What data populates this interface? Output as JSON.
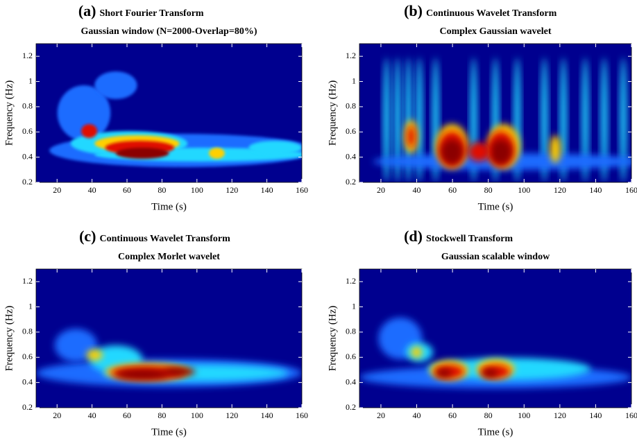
{
  "chart_data": [
    {
      "type": "heatmap",
      "panel": "(a)",
      "title": "Short Fourier Transform",
      "subtitle": "Gaussian window (N=2000-Overlap=80%)",
      "xlabel": "Time (s)",
      "ylabel": "Frequency (Hz)",
      "xlim": [
        8,
        160
      ],
      "ylim": [
        0.2,
        1.3
      ],
      "xticks": [
        20,
        40,
        60,
        80,
        100,
        120,
        140,
        160
      ],
      "yticks": [
        0.2,
        0.4,
        0.6,
        0.8,
        1,
        1.2
      ]
    },
    {
      "type": "heatmap",
      "panel": "(b)",
      "title": "Continuous Wavelet Transform",
      "subtitle": "Complex Gaussian wavelet",
      "xlabel": "Time (s)",
      "ylabel": "Frequency (Hz)",
      "xlim": [
        8,
        160
      ],
      "ylim": [
        0.2,
        1.3
      ],
      "xticks": [
        20,
        40,
        60,
        80,
        100,
        120,
        140,
        160
      ],
      "yticks": [
        0.2,
        0.4,
        0.6,
        0.8,
        1,
        1.2
      ]
    },
    {
      "type": "heatmap",
      "panel": "(c)",
      "title": "Continuous Wavelet Transform",
      "subtitle": "Complex Morlet wavelet",
      "xlabel": "Time (s)",
      "ylabel": "Frequency (Hz)",
      "xlim": [
        8,
        160
      ],
      "ylim": [
        0.2,
        1.3
      ],
      "xticks": [
        20,
        40,
        60,
        80,
        100,
        120,
        140,
        160
      ],
      "yticks": [
        0.2,
        0.4,
        0.6,
        0.8,
        1,
        1.2
      ]
    },
    {
      "type": "heatmap",
      "panel": "(d)",
      "title": "Stockwell Transform",
      "subtitle": "Gaussian scalable window",
      "xlabel": "Time (s)",
      "ylabel": "Frequency (Hz)",
      "xlim": [
        8,
        160
      ],
      "ylim": [
        0.2,
        1.3
      ],
      "xticks": [
        20,
        40,
        60,
        80,
        100,
        120,
        140,
        160
      ],
      "yticks": [
        0.2,
        0.4,
        0.6,
        0.8,
        1,
        1.2
      ]
    }
  ]
}
